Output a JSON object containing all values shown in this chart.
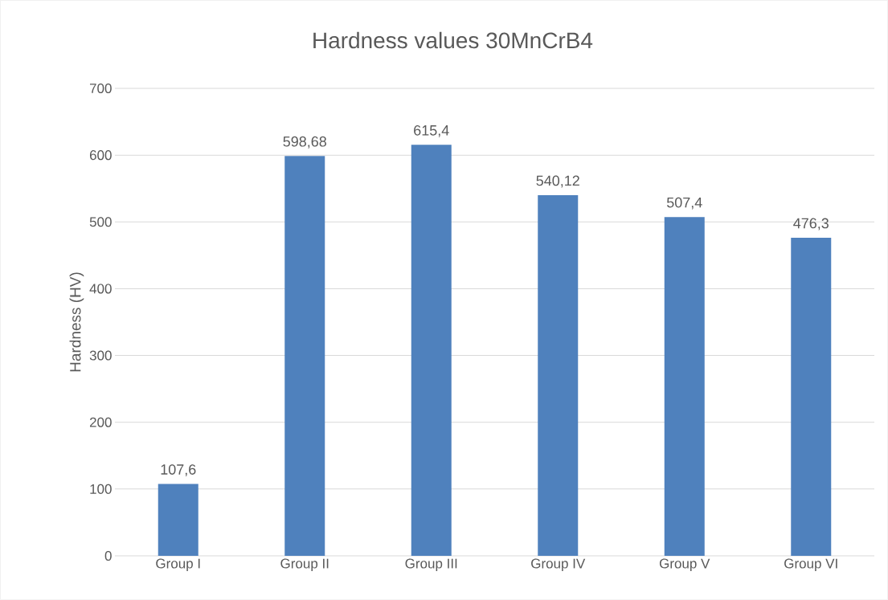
{
  "chart_data": {
    "type": "bar",
    "title": "Hardness values 30MnCrB4",
    "ylabel": "Hardness (HV)",
    "categories": [
      "Group I",
      "Group II",
      "Group III",
      "Group IV",
      "Group V",
      "Group VI"
    ],
    "values": [
      107.6,
      598.68,
      615.4,
      540.12,
      507.4,
      476.3
    ],
    "value_labels": [
      "107,6",
      "598,68",
      "615,4",
      "540,12",
      "507,4",
      "476,3"
    ],
    "color": "#4f81bd",
    "ylim": [
      0,
      700
    ],
    "yticks": [
      0,
      100,
      200,
      300,
      400,
      500,
      600,
      700
    ],
    "grid": "y"
  }
}
